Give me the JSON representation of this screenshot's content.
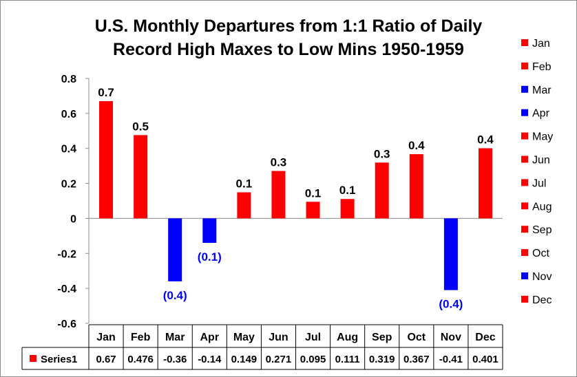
{
  "chart_data": {
    "type": "bar",
    "title_line1": "U.S. Monthly Departures from 1:1 Ratio of Daily",
    "title_line2": "Record High Maxes to Low Mins 1950-1959",
    "categories": [
      "Jan",
      "Feb",
      "Mar",
      "Apr",
      "May",
      "Jun",
      "Jul",
      "Aug",
      "Sep",
      "Oct",
      "Nov",
      "Dec"
    ],
    "series": [
      {
        "name": "Series1",
        "values": [
          0.67,
          0.476,
          -0.36,
          -0.14,
          0.149,
          0.271,
          0.095,
          0.111,
          0.319,
          0.367,
          -0.41,
          0.401
        ],
        "table_values": [
          "0.67",
          "0.476",
          "-0.36",
          "-0.14",
          "0.149",
          "0.271",
          "0.095",
          "0.111",
          "0.319",
          "0.367",
          "-0.41",
          "0.401"
        ],
        "data_labels": [
          "0.7",
          "0.5",
          "(0.4)",
          "(0.1)",
          "0.1",
          "0.3",
          "0.1",
          "0.1",
          "0.3",
          "0.4",
          "(0.4)",
          "0.4"
        ]
      }
    ],
    "ylim": [
      -0.6,
      0.8
    ],
    "yticks": [
      -0.6,
      -0.4,
      -0.2,
      0,
      0.2,
      0.4,
      0.6,
      0.8
    ],
    "ytick_labels": [
      "-0.6",
      "-0.4",
      "-0.2",
      "0",
      "0.2",
      "0.4",
      "0.6",
      "0.8"
    ],
    "colors": {
      "positive": "#ff0000",
      "negative": "#0000ff",
      "negative_label": "#0000ff",
      "positive_label": "#000000"
    },
    "legend_position": "right",
    "grid": false,
    "data_table": true
  }
}
